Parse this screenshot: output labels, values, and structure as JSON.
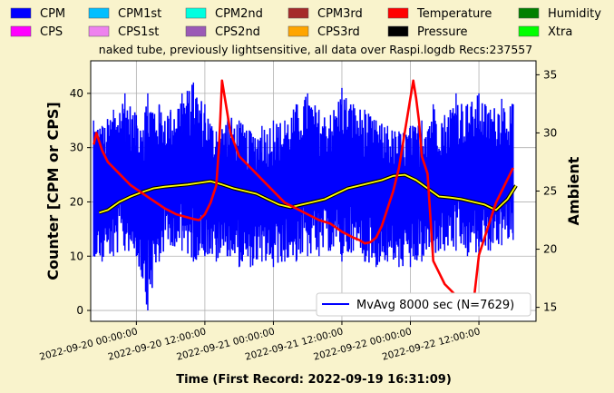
{
  "legend": [
    {
      "label": "CPM",
      "color": "#0000ff"
    },
    {
      "label": "CPM1st",
      "color": "#00bfff"
    },
    {
      "label": "CPM2nd",
      "color": "#00ffe0"
    },
    {
      "label": "CPM3rd",
      "color": "#a52a2a"
    },
    {
      "label": "Temperature",
      "color": "#ff0000"
    },
    {
      "label": "Humidity",
      "color": "#008000"
    },
    {
      "label": "CPS",
      "color": "#ff00ff"
    },
    {
      "label": "CPS1st",
      "color": "#ee82ee"
    },
    {
      "label": "CPS2nd",
      "color": "#9b59b6"
    },
    {
      "label": "CPS3rd",
      "color": "#ffa500"
    },
    {
      "label": "Pressure",
      "color": "#000000"
    },
    {
      "label": "Xtra",
      "color": "#00ff00"
    }
  ],
  "chart_data": {
    "type": "line",
    "title": "naked tube, previously lightsensitive, all data over Raspi.logdb   Recs:237557",
    "xlabel": "Time (First Record: 2022-09-19 16:31:09)",
    "ylabel": "Counter  [CPM or CPS]",
    "y2label": "Ambient",
    "ylim": [
      -2,
      46
    ],
    "y2lim": [
      13.8,
      36.2
    ],
    "yticks": [
      0,
      10,
      20,
      30,
      40
    ],
    "y2ticks": [
      15,
      20,
      25,
      30,
      35
    ],
    "xlim": [
      "2022-09-19 16:00",
      "2022-09-22 22:00"
    ],
    "xticks": [
      "2022-09-20  00:00:00",
      "2022-09-20  12:00:00",
      "2022-09-21  00:00:00",
      "2022-09-21  12:00:00",
      "2022-09-22  00:00:00",
      "2022-09-22  12:00:00"
    ],
    "grid": true,
    "legend_box": "MvAvg 8000 sec (N=7629)",
    "legend_box_position": "lower-right",
    "series": [
      {
        "name": "CPM",
        "axis": "left",
        "color": "#0000ff",
        "x": [
          "2022-09-19 16:31",
          "2022-09-19 18:00",
          "2022-09-19 20:00",
          "2022-09-19 22:00",
          "2022-09-20 00:00",
          "2022-09-20 02:00",
          "2022-09-20 04:00",
          "2022-09-20 06:00",
          "2022-09-20 08:00",
          "2022-09-20 10:00",
          "2022-09-20 12:00",
          "2022-09-20 14:00",
          "2022-09-20 16:00",
          "2022-09-20 18:00",
          "2022-09-20 20:00",
          "2022-09-20 22:00",
          "2022-09-21 00:00",
          "2022-09-21 02:00",
          "2022-09-21 04:00",
          "2022-09-21 06:00",
          "2022-09-21 08:00",
          "2022-09-21 10:00",
          "2022-09-21 12:00",
          "2022-09-21 14:00",
          "2022-09-21 16:00",
          "2022-09-21 18:00",
          "2022-09-21 20:00",
          "2022-09-21 22:00",
          "2022-09-22 00:00",
          "2022-09-22 02:00",
          "2022-09-22 04:00",
          "2022-09-22 06:00",
          "2022-09-22 08:00",
          "2022-09-22 10:00",
          "2022-09-22 12:00",
          "2022-09-22 14:00",
          "2022-09-22 16:00",
          "2022-09-22 18:00"
        ],
        "upper": [
          35,
          34,
          37,
          40,
          36,
          40,
          38,
          37,
          40,
          42,
          38,
          33,
          36,
          35,
          33,
          34,
          35,
          35,
          38,
          40,
          37,
          36,
          41,
          38,
          37,
          35,
          34,
          33,
          34,
          35,
          38,
          36,
          40,
          38,
          40,
          37,
          39,
          38
        ],
        "lower": [
          10,
          9,
          10,
          11,
          10,
          0,
          9,
          12,
          11,
          9,
          10,
          9,
          10,
          8,
          8,
          9,
          8,
          9,
          9,
          10,
          10,
          11,
          9,
          11,
          9,
          8,
          9,
          8,
          8,
          9,
          10,
          11,
          11,
          10,
          10,
          11,
          12,
          13
        ]
      },
      {
        "name": "MvAvg 8000 sec",
        "axis": "left",
        "color": "#ffff00",
        "x": [
          "2022-09-19 17:30",
          "2022-09-19 19:00",
          "2022-09-19 21:00",
          "2022-09-19 23:00",
          "2022-09-20 01:00",
          "2022-09-20 03:00",
          "2022-09-20 05:00",
          "2022-09-20 07:00",
          "2022-09-20 09:00",
          "2022-09-20 11:00",
          "2022-09-20 13:00",
          "2022-09-20 15:00",
          "2022-09-20 17:00",
          "2022-09-20 19:00",
          "2022-09-20 21:00",
          "2022-09-20 23:00",
          "2022-09-21 01:00",
          "2022-09-21 03:00",
          "2022-09-21 05:00",
          "2022-09-21 07:00",
          "2022-09-21 09:00",
          "2022-09-21 11:00",
          "2022-09-21 13:00",
          "2022-09-21 15:00",
          "2022-09-21 17:00",
          "2022-09-21 19:00",
          "2022-09-21 21:00",
          "2022-09-21 23:00",
          "2022-09-22 01:00",
          "2022-09-22 03:00",
          "2022-09-22 05:00",
          "2022-09-22 07:00",
          "2022-09-22 09:00",
          "2022-09-22 11:00",
          "2022-09-22 13:00",
          "2022-09-22 15:00",
          "2022-09-22 17:00",
          "2022-09-22 18:30"
        ],
        "y": [
          18.0,
          18.5,
          20.0,
          21.0,
          21.8,
          22.5,
          22.8,
          23.0,
          23.2,
          23.5,
          23.8,
          23.2,
          22.5,
          22.0,
          21.5,
          20.5,
          19.5,
          19.0,
          19.5,
          20.0,
          20.5,
          21.5,
          22.5,
          23.0,
          23.5,
          24.0,
          24.8,
          25.0,
          24.0,
          22.5,
          21.0,
          20.8,
          20.5,
          20.0,
          19.5,
          18.5,
          20.5,
          23.0
        ]
      },
      {
        "name": "Temperature",
        "axis": "right",
        "color": "#ff0000",
        "x": [
          "2022-09-19 16:31",
          "2022-09-19 17:00",
          "2022-09-19 18:00",
          "2022-09-19 19:00",
          "2022-09-19 21:00",
          "2022-09-19 23:00",
          "2022-09-20 02:00",
          "2022-09-20 05:00",
          "2022-09-20 07:00",
          "2022-09-20 08:30",
          "2022-09-20 10:00",
          "2022-09-20 11:00",
          "2022-09-20 12:00",
          "2022-09-20 13:00",
          "2022-09-20 14:00",
          "2022-09-20 14:30",
          "2022-09-20 15:00",
          "2022-09-20 16:30",
          "2022-09-20 18:00",
          "2022-09-20 20:00",
          "2022-09-20 22:00",
          "2022-09-21 00:00",
          "2022-09-21 02:00",
          "2022-09-21 04:00",
          "2022-09-21 06:00",
          "2022-09-21 08:00",
          "2022-09-21 10:00",
          "2022-09-21 12:00",
          "2022-09-21 14:00",
          "2022-09-21 15:00",
          "2022-09-21 16:00",
          "2022-09-21 17:00",
          "2022-09-21 18:00",
          "2022-09-21 19:00",
          "2022-09-21 20:00",
          "2022-09-21 21:00",
          "2022-09-21 22:00",
          "2022-09-21 23:00",
          "2022-09-22 00:00",
          "2022-09-22 00:30",
          "2022-09-22 01:00",
          "2022-09-22 01:30",
          "2022-09-22 02:00",
          "2022-09-22 03:00",
          "2022-09-22 04:00",
          "2022-09-22 05:00",
          "2022-09-22 06:00",
          "2022-09-22 07:00",
          "2022-09-22 08:00",
          "2022-09-22 09:00",
          "2022-09-22 10:00",
          "2022-09-22 11:00",
          "2022-09-22 12:00",
          "2022-09-22 13:00",
          "2022-09-22 14:00",
          "2022-09-22 15:00",
          "2022-09-22 16:00",
          "2022-09-22 17:00",
          "2022-09-22 18:00"
        ],
        "y": [
          29.0,
          30.0,
          28.5,
          27.5,
          26.5,
          25.5,
          24.5,
          23.5,
          23.0,
          22.8,
          22.6,
          22.5,
          23.0,
          24.0,
          25.5,
          29.0,
          34.5,
          30.0,
          28.0,
          27.0,
          26.0,
          25.0,
          24.0,
          23.5,
          23.0,
          22.5,
          22.2,
          21.5,
          21.0,
          20.8,
          20.5,
          20.6,
          21.0,
          22.0,
          23.5,
          25.0,
          27.0,
          30.0,
          33.0,
          34.5,
          33.0,
          31.0,
          28.0,
          26.5,
          19.0,
          18.0,
          17.0,
          16.5,
          16.0,
          15.5,
          15.0,
          15.2,
          19.5,
          21.0,
          22.5,
          24.0,
          25.0,
          26.0,
          27.0
        ]
      }
    ]
  }
}
